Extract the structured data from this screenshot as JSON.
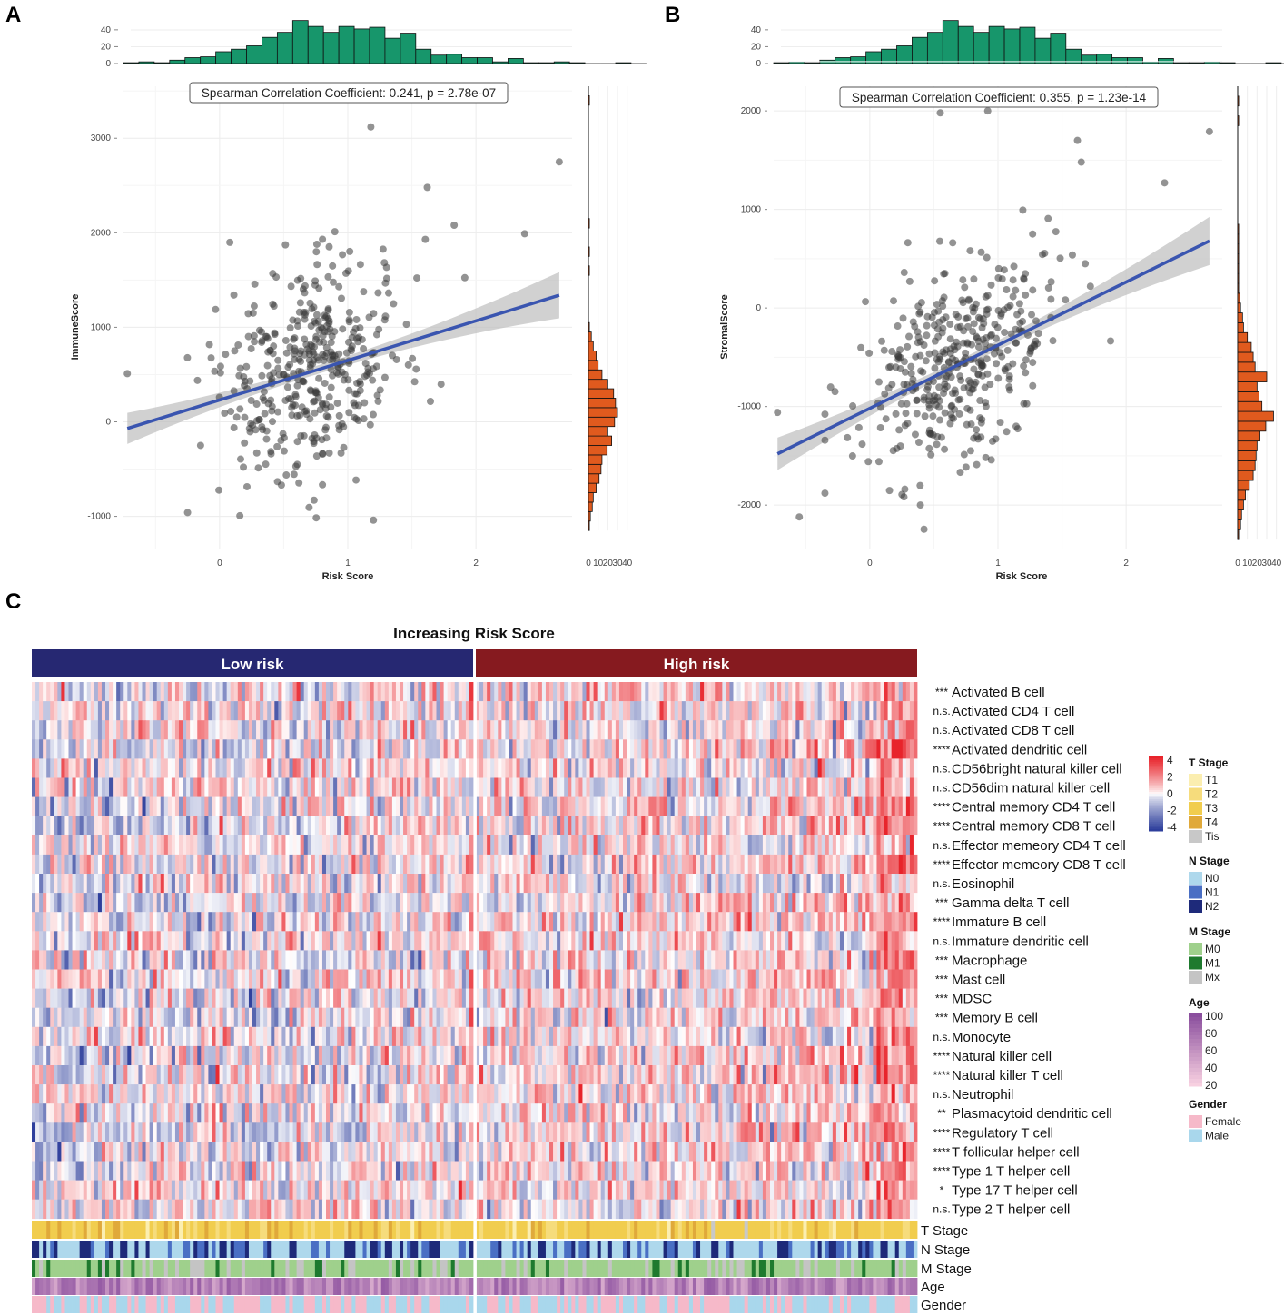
{
  "panels": {
    "a": "A",
    "b": "B",
    "c": "C"
  },
  "chart_data": [
    {
      "type": "scatter",
      "panel": "A",
      "xlabel": "Risk Score",
      "ylabel": "ImmuneScore",
      "xlim": [
        -0.75,
        2.75
      ],
      "ylim": [
        -1350,
        3550
      ],
      "xticks": [
        0,
        1,
        2
      ],
      "yticks": [
        -1000,
        0,
        1000,
        2000,
        3000
      ],
      "annotation": "Spearman Correlation Coefficient: 0.241, p = 2.78e-07",
      "regression": {
        "x0": -0.72,
        "y0": -70,
        "x1": 2.65,
        "y1": 1340
      },
      "outliers": [
        [
          1.18,
          3120
        ],
        [
          2.65,
          2750
        ],
        [
          1.62,
          2480
        ],
        [
          2.38,
          1990
        ],
        [
          1.83,
          2080
        ],
        [
          -0.72,
          510
        ],
        [
          1.2,
          -1040
        ],
        [
          -0.25,
          -960
        ]
      ],
      "top_histogram": {
        "bin_start": -0.75,
        "bin_width": 0.12,
        "counts": [
          1,
          2,
          1,
          4,
          7,
          8,
          14,
          17,
          21,
          31,
          37,
          51,
          44,
          37,
          44,
          41,
          43,
          30,
          36,
          17,
          10,
          11,
          7,
          7,
          2,
          6,
          1,
          1,
          2,
          1,
          0,
          0,
          1,
          0
        ],
        "ticks": [
          0,
          20,
          40
        ]
      },
      "side_histogram": {
        "bin_start": -1150,
        "bin_width": 100,
        "counts": [
          1,
          2,
          4,
          5,
          8,
          11,
          13,
          14,
          19,
          24,
          20,
          27,
          30,
          28,
          26,
          20,
          14,
          10,
          8,
          5,
          3,
          1,
          0,
          0,
          0,
          0,
          0,
          1,
          0,
          1,
          0,
          0,
          1,
          0,
          0,
          0,
          0,
          0,
          0,
          0,
          0,
          0,
          0,
          0,
          0,
          1,
          0,
          0
        ],
        "ticks": [
          "0",
          "10",
          "20",
          "30",
          "40"
        ]
      }
    },
    {
      "type": "scatter",
      "panel": "B",
      "xlabel": "Risk Score",
      "ylabel": "StromalScore",
      "xlim": [
        -0.75,
        2.75
      ],
      "ylim": [
        -2450,
        2250
      ],
      "xticks": [
        0,
        1,
        2
      ],
      "yticks": [
        -2000,
        -1000,
        0,
        1000,
        2000
      ],
      "annotation": "Spearman Correlation Coefficient: 0.355, p = 1.23e-14",
      "regression": {
        "x0": -0.72,
        "y0": -1480,
        "x1": 2.65,
        "y1": 680
      },
      "outliers": [
        [
          0.55,
          1980
        ],
        [
          0.92,
          2000
        ],
        [
          2.65,
          1790
        ],
        [
          1.62,
          1700
        ],
        [
          2.3,
          1270
        ],
        [
          1.65,
          1480
        ],
        [
          -0.72,
          -1060
        ],
        [
          -0.55,
          -2120
        ]
      ],
      "top_histogram": {
        "bin_start": -0.75,
        "bin_width": 0.12,
        "counts": [
          1,
          2,
          1,
          4,
          7,
          8,
          14,
          17,
          21,
          31,
          37,
          51,
          44,
          37,
          44,
          41,
          43,
          30,
          36,
          17,
          10,
          11,
          7,
          7,
          2,
          6,
          1,
          1,
          2,
          1,
          0,
          0,
          1,
          0
        ],
        "ticks": [
          0,
          20,
          40
        ]
      },
      "side_histogram": {
        "bin_start": -2350,
        "bin_width": 100,
        "counts": [
          1,
          3,
          4,
          6,
          8,
          12,
          16,
          18,
          19,
          20,
          23,
          29,
          37,
          25,
          22,
          20,
          30,
          18,
          16,
          14,
          10,
          6,
          5,
          3,
          2,
          1,
          1,
          1,
          1,
          1,
          1,
          1,
          0,
          0,
          0,
          0,
          0,
          0,
          0,
          0,
          0,
          0,
          1,
          0,
          1,
          0,
          0,
          0
        ],
        "ticks": [
          "0",
          "10",
          "20",
          "30",
          "40"
        ]
      }
    },
    {
      "type": "heatmap",
      "panel": "C",
      "title": "Increasing Risk Score",
      "groups": [
        {
          "label": "Low risk",
          "color": "#262872"
        },
        {
          "label": "High risk",
          "color": "#861a1f"
        }
      ],
      "rows": [
        {
          "sig": "***",
          "label": "Activated B cell"
        },
        {
          "sig": "n.s.",
          "label": "Activated CD4 T cell"
        },
        {
          "sig": "n.s.",
          "label": "Activated CD8 T cell"
        },
        {
          "sig": "****",
          "label": "Activated dendritic cell"
        },
        {
          "sig": "n.s.",
          "label": "CD56bright natural killer cell"
        },
        {
          "sig": "n.s.",
          "label": "CD56dim natural killer cell"
        },
        {
          "sig": "****",
          "label": "Central memory CD4 T cell"
        },
        {
          "sig": "****",
          "label": "Central memory CD8 T cell"
        },
        {
          "sig": "n.s.",
          "label": "Effector memeory CD4 T cell"
        },
        {
          "sig": "****",
          "label": "Effector memeory CD8 T cell"
        },
        {
          "sig": "n.s.",
          "label": "Eosinophil"
        },
        {
          "sig": "***",
          "label": "Gamma delta T cell"
        },
        {
          "sig": "****",
          "label": "Immature  B cell"
        },
        {
          "sig": "n.s.",
          "label": "Immature dendritic cell"
        },
        {
          "sig": "***",
          "label": "Macrophage"
        },
        {
          "sig": "***",
          "label": "Mast cell"
        },
        {
          "sig": "***",
          "label": "MDSC"
        },
        {
          "sig": "***",
          "label": "Memory B cell"
        },
        {
          "sig": "n.s.",
          "label": "Monocyte"
        },
        {
          "sig": "****",
          "label": "Natural killer cell"
        },
        {
          "sig": "****",
          "label": "Natural killer T cell"
        },
        {
          "sig": "n.s.",
          "label": "Neutrophil"
        },
        {
          "sig": "**",
          "label": "Plasmacytoid dendritic cell"
        },
        {
          "sig": "****",
          "label": "Regulatory T cell"
        },
        {
          "sig": "****",
          "label": "T follicular helper cell"
        },
        {
          "sig": "****",
          "label": "Type 1 T helper cell"
        },
        {
          "sig": "*",
          "label": "Type 17 T helper cell"
        },
        {
          "sig": "n.s.",
          "label": "Type 2 T helper cell"
        }
      ],
      "annotation_tracks": [
        "T Stage",
        "N Stage",
        "M Stage",
        "Age",
        "Gender"
      ],
      "color_scale": {
        "ticks": [
          "4",
          "2",
          "0",
          "-2",
          "-4"
        ],
        "range": [
          -4,
          4
        ]
      }
    }
  ],
  "legends": [
    {
      "title": "T Stage",
      "items": [
        {
          "label": "T1",
          "color": "#fbeeb0"
        },
        {
          "label": "T2",
          "color": "#f6dc7c"
        },
        {
          "label": "T3",
          "color": "#f1cd4e"
        },
        {
          "label": "T4",
          "color": "#e0a93a"
        },
        {
          "label": "Tis",
          "color": "#c8c8c8"
        }
      ]
    },
    {
      "title": "N Stage",
      "items": [
        {
          "label": "N0",
          "color": "#aed8ec"
        },
        {
          "label": "N1",
          "color": "#4a6fc4"
        },
        {
          "label": "N2",
          "color": "#1e2a7a"
        }
      ]
    },
    {
      "title": "M Stage",
      "items": [
        {
          "label": "M0",
          "color": "#9fd08c"
        },
        {
          "label": "M1",
          "color": "#1e7a2e"
        },
        {
          "label": "Mx",
          "color": "#c4c4c4"
        }
      ]
    },
    {
      "title": "Age",
      "gradient": [
        "#f7d0e0",
        "#8b4f9e"
      ],
      "ticks": [
        "100",
        "80",
        "60",
        "40",
        "20"
      ]
    },
    {
      "title": "Gender",
      "items": [
        {
          "label": "Female",
          "color": "#f6b9c9"
        },
        {
          "label": "Male",
          "color": "#a9d7ec"
        }
      ]
    }
  ],
  "colors": {
    "scatter_point": "#3a3a3a",
    "regression_line": "#3a55b0",
    "confidence_band": "#bdbdbd",
    "top_hist": "#17966b",
    "side_hist": "#e05a1e",
    "heat_high": "#e8242b",
    "heat_mid": "#ffffff",
    "heat_low": "#2e3f9c"
  }
}
